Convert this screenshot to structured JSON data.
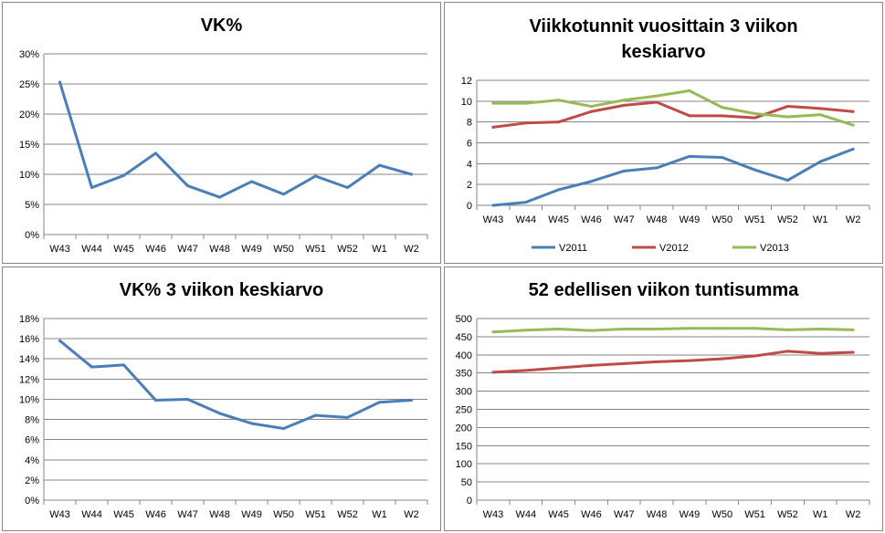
{
  "chart_data": [
    {
      "type": "line",
      "title": "VK%",
      "categories": [
        "W43",
        "W44",
        "W45",
        "W46",
        "W47",
        "W48",
        "W49",
        "W50",
        "W51",
        "W52",
        "W1",
        "W2"
      ],
      "series": [
        {
          "values": [
            0.253,
            0.078,
            0.098,
            0.135,
            0.081,
            0.062,
            0.088,
            0.067,
            0.097,
            0.078,
            0.115,
            0.1
          ]
        }
      ],
      "ylim": [
        0,
        0.3
      ],
      "yticks": [
        0,
        0.05,
        0.1,
        0.15,
        0.2,
        0.25,
        0.3
      ],
      "ytick_labels": [
        "0%",
        "5%",
        "10%",
        "15%",
        "20%",
        "25%",
        "30%"
      ],
      "grid": true,
      "colors": [
        "#4a7ebb"
      ]
    },
    {
      "type": "line",
      "title": "Viikkotunnit vuosittain 3 viikon keskiarvo",
      "title_lines": [
        "Viikkotunnit vuosittain 3 viikon",
        "keskiarvo"
      ],
      "categories": [
        "W43",
        "W44",
        "W45",
        "W46",
        "W47",
        "W48",
        "W49",
        "W50",
        "W51",
        "W52",
        "W1",
        "W2"
      ],
      "series": [
        {
          "name": "V2011",
          "values": [
            0.0,
            0.3,
            1.5,
            2.3,
            3.3,
            3.6,
            4.7,
            4.6,
            3.4,
            2.4,
            4.2,
            5.4
          ]
        },
        {
          "name": "V2012",
          "values": [
            7.5,
            7.9,
            8.0,
            9.0,
            9.6,
            9.9,
            8.6,
            8.6,
            8.4,
            9.5,
            9.3,
            9.0
          ]
        },
        {
          "name": "V2013",
          "values": [
            9.8,
            9.8,
            10.1,
            9.5,
            10.1,
            10.5,
            11.0,
            9.4,
            8.8,
            8.5,
            8.7,
            7.7
          ]
        }
      ],
      "ylim": [
        0,
        12
      ],
      "yticks": [
        0,
        2,
        4,
        6,
        8,
        10,
        12
      ],
      "ytick_labels": [
        "0",
        "2",
        "4",
        "6",
        "8",
        "10",
        "12"
      ],
      "legend": "bottom",
      "grid": true,
      "colors": [
        "#4a7ebb",
        "#be4b48",
        "#98b954"
      ]
    },
    {
      "type": "line",
      "title": "VK% 3 viikon keskiarvo",
      "categories": [
        "W43",
        "W44",
        "W45",
        "W46",
        "W47",
        "W48",
        "W49",
        "W50",
        "W51",
        "W52",
        "W1",
        "W2"
      ],
      "series": [
        {
          "values": [
            0.158,
            0.132,
            0.134,
            0.099,
            0.1,
            0.086,
            0.076,
            0.071,
            0.084,
            0.082,
            0.097,
            0.099
          ]
        }
      ],
      "ylim": [
        0,
        0.18
      ],
      "yticks": [
        0,
        0.02,
        0.04,
        0.06,
        0.08,
        0.1,
        0.12,
        0.14,
        0.16,
        0.18
      ],
      "ytick_labels": [
        "0%",
        "2%",
        "4%",
        "6%",
        "8%",
        "10%",
        "12%",
        "14%",
        "16%",
        "18%"
      ],
      "grid": true,
      "colors": [
        "#4a7ebb"
      ]
    },
    {
      "type": "line",
      "title": "52 edellisen viikon tuntisumma",
      "categories": [
        "W43",
        "W44",
        "W45",
        "W46",
        "W47",
        "W48",
        "W49",
        "W50",
        "W51",
        "W52",
        "W1",
        "W2"
      ],
      "series": [
        {
          "values": [
            352,
            357,
            364,
            371,
            376,
            381,
            384,
            389,
            397,
            410,
            404,
            407
          ]
        },
        {
          "values": [
            463,
            468,
            471,
            467,
            471,
            471,
            473,
            473,
            473,
            469,
            471,
            469
          ]
        }
      ],
      "ylim": [
        0,
        500
      ],
      "yticks": [
        0,
        50,
        100,
        150,
        200,
        250,
        300,
        350,
        400,
        450,
        500
      ],
      "ytick_labels": [
        "0",
        "50",
        "100",
        "150",
        "200",
        "250",
        "300",
        "350",
        "400",
        "450",
        "500"
      ],
      "grid": true,
      "colors": [
        "#be4b48",
        "#98b954"
      ]
    }
  ]
}
